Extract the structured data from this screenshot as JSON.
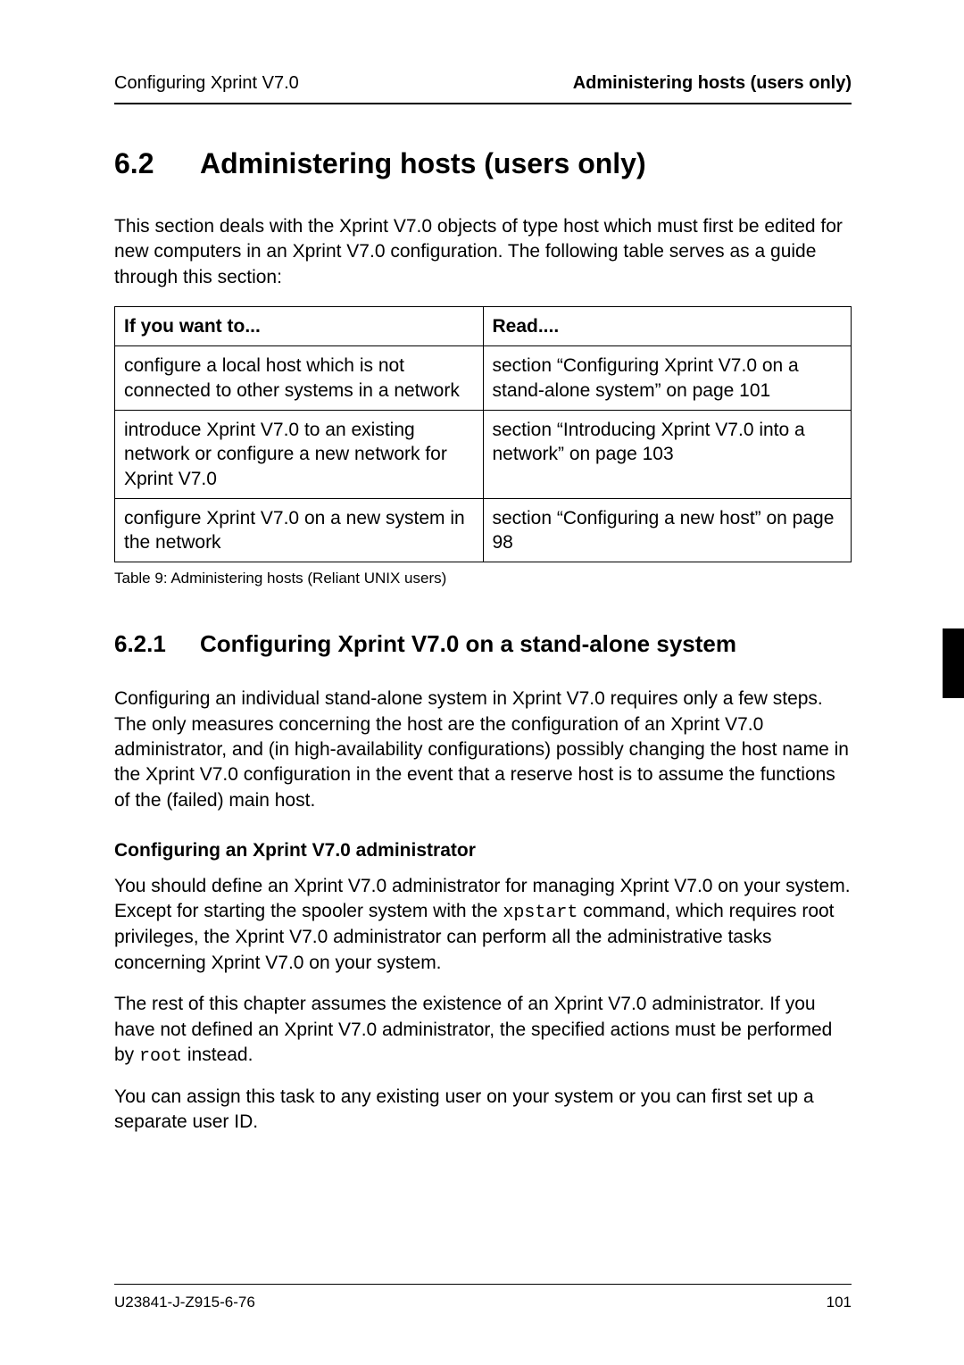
{
  "header": {
    "left": "Configuring Xprint V7.0",
    "right": "Administering hosts (users only)"
  },
  "section": {
    "number": "6.2",
    "title": "Administering hosts (users only)",
    "intro": "This section deals with the Xprint V7.0 objects of type host which must first be edited for new computers in an Xprint V7.0 configuration. The following table serves as a guide through this section:"
  },
  "table": {
    "columns": [
      "If you want to...",
      "Read...."
    ],
    "rows": [
      [
        "configure a local host which is not connected to other systems in a network",
        "section “Configuring Xprint V7.0 on a stand-alone system” on page 101"
      ],
      [
        "introduce Xprint V7.0 to an existing network or configure a new network for Xprint V7.0",
        "section “Introducing Xprint V7.0 into a network” on page 103"
      ],
      [
        "configure Xprint V7.0 on a new system in the network",
        "section “Configuring a new host” on page 98"
      ]
    ],
    "caption": "Table 9:  Administering hosts (Reliant UNIX users)"
  },
  "subsection": {
    "number": "6.2.1",
    "title": "Configuring Xprint V7.0 on a stand-alone system",
    "para1": "Configuring an individual stand-alone system in Xprint V7.0 requires only a few steps. The only measures concerning the host are the configuration of an Xprint V7.0 administrator, and (in high-availability configurations) possibly changing the host name in the Xprint V7.0 configuration in the event that a reserve host is to assume the functions of the (failed) main host.",
    "heading": "Configuring an Xprint V7.0 administrator",
    "para2_a": "You should define an Xprint V7.0 administrator for managing Xprint V7.0 on your system. Except for starting the spooler system with the ",
    "code1": "xpstart",
    "para2_b": " command, which requires root privileges, the Xprint V7.0 administrator can perform all the administrative tasks concerning Xprint V7.0 on your system.",
    "para3_a": "The rest of this chapter assumes the existence of an Xprint V7.0 administrator. If you have not defined an Xprint V7.0 administrator, the specified actions must be performed by ",
    "code2": "root",
    "para3_b": " instead.",
    "para4": "You can assign this task to any existing user on your system or you can first set up a separate user ID."
  },
  "footer": {
    "doc_id": "U23841-J-Z915-6-76",
    "page_number": "101"
  },
  "style": {
    "thumb_tab_color": "#000000"
  }
}
